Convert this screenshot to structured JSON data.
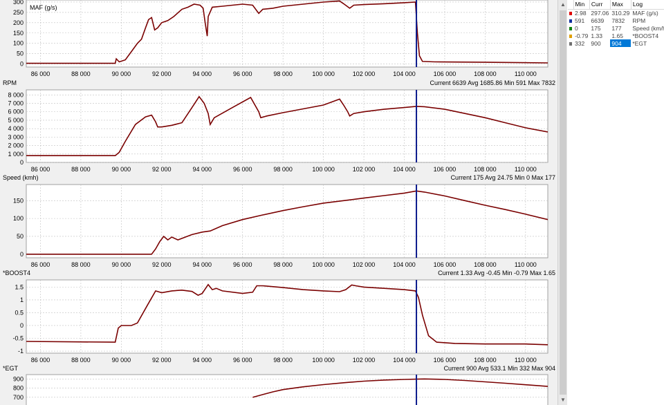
{
  "legend": {
    "headers": [
      "Min",
      "Curr",
      "Max",
      "Log"
    ],
    "rows": [
      {
        "color": "#e00000",
        "min": "2.98",
        "curr": "297.06",
        "max": "310.29",
        "log": "MAF (g/s)"
      },
      {
        "color": "#1030a0",
        "min": "591",
        "curr": "6639",
        "max": "7832",
        "log": "RPM"
      },
      {
        "color": "#108010",
        "min": "0",
        "curr": "175",
        "max": "177",
        "log": "Speed (km/h)"
      },
      {
        "color": "#e0a000",
        "min": "-0.79",
        "curr": "1.33",
        "max": "1.65",
        "log": "*BOOST4"
      },
      {
        "color": "#707070",
        "min": "332",
        "curr": "900",
        "max": "904",
        "log": "*EGT"
      }
    ]
  },
  "colors": {
    "trace": "#7a0000",
    "cursor": "#0b1a8c",
    "grid": "#c0c0c0"
  },
  "cursor_x": 104600,
  "chart_data": [
    {
      "type": "line",
      "name": "MAF (g/s)",
      "header": "",
      "stats": "",
      "ylim": [
        -15,
        310
      ],
      "yticks": [
        0,
        50,
        100,
        150,
        200,
        250,
        300
      ],
      "ytick_labels": [
        "0",
        "50",
        "100",
        "150",
        "200",
        "250",
        "300"
      ],
      "xlim": [
        85300,
        111100
      ],
      "xticks": [
        86000,
        88000,
        90000,
        92000,
        94000,
        96000,
        98000,
        100000,
        102000,
        104000,
        106000,
        108000,
        110000
      ],
      "xtick_labels": [
        "86 000",
        "88 000",
        "90 000",
        "92 000",
        "94 000",
        "96 000",
        "98 000",
        "100 000",
        "102 000",
        "104 000",
        "106 000",
        "108 000",
        "110 000"
      ],
      "x": [
        85300,
        89700,
        89750,
        89900,
        90200,
        90500,
        90800,
        91000,
        91200,
        91350,
        91500,
        91650,
        91800,
        92000,
        92300,
        92600,
        93000,
        93300,
        93600,
        93900,
        94050,
        94150,
        94250,
        94300,
        94500,
        95000,
        95500,
        96000,
        96500,
        96800,
        97000,
        97500,
        98000,
        99000,
        100000,
        100800,
        101000,
        101300,
        101500,
        102000,
        103000,
        104000,
        104550,
        104650,
        104750,
        104900,
        105500,
        108000,
        111100
      ],
      "values": [
        3,
        3,
        25,
        10,
        20,
        60,
        100,
        120,
        175,
        215,
        225,
        165,
        175,
        200,
        210,
        230,
        265,
        275,
        290,
        285,
        270,
        200,
        135,
        230,
        275,
        280,
        285,
        290,
        285,
        245,
        265,
        270,
        280,
        290,
        300,
        305,
        292,
        270,
        285,
        288,
        292,
        297,
        300,
        150,
        40,
        12,
        10,
        8,
        5
      ]
    },
    {
      "type": "line",
      "name": "RPM",
      "header": "RPM",
      "stats": "Current 6639 Avg 1685.86 Min 591 Max 7832",
      "ylim": [
        0,
        8600
      ],
      "yticks": [
        0,
        1000,
        2000,
        3000,
        4000,
        5000,
        6000,
        7000,
        8000
      ],
      "ytick_labels": [
        "0",
        "1 000",
        "2 000",
        "3 000",
        "4 000",
        "5 000",
        "6 000",
        "7 000",
        "8 000"
      ],
      "xlim": [
        85300,
        111100
      ],
      "xticks": [
        86000,
        88000,
        90000,
        92000,
        94000,
        96000,
        98000,
        100000,
        102000,
        104000,
        106000,
        108000,
        110000
      ],
      "xtick_labels": [
        "86 000",
        "88 000",
        "90 000",
        "92 000",
        "94 000",
        "96 000",
        "98 000",
        "100 000",
        "102 000",
        "104 000",
        "106 000",
        "108 000",
        "110 000"
      ],
      "x": [
        85300,
        89700,
        89900,
        90200,
        90700,
        91200,
        91500,
        91700,
        91800,
        92000,
        92500,
        93000,
        93500,
        93850,
        94100,
        94300,
        94400,
        94600,
        95500,
        96400,
        96800,
        96900,
        97200,
        98000,
        100000,
        100800,
        101000,
        101200,
        101300,
        101500,
        102000,
        103000,
        104000,
        104600,
        105000,
        106000,
        107000,
        108000,
        109000,
        110000,
        111100
      ],
      "values": [
        800,
        800,
        1200,
        2500,
        4500,
        5400,
        5600,
        4800,
        4200,
        4200,
        4400,
        4700,
        6500,
        7800,
        7000,
        5800,
        4500,
        5300,
        6500,
        7700,
        6000,
        5300,
        5500,
        5900,
        6800,
        7500,
        6800,
        6000,
        5500,
        5800,
        6000,
        6300,
        6500,
        6639,
        6600,
        6300,
        5800,
        5300,
        4700,
        4100,
        3600
      ]
    },
    {
      "type": "line",
      "name": "Speed (km/h)",
      "header": "Speed (kmh)",
      "stats": "Current 175 Avg 24.75 Min 0 Max 177",
      "ylim": [
        -10,
        195
      ],
      "yticks": [
        0,
        50,
        100,
        150
      ],
      "ytick_labels": [
        "0",
        "50",
        "100",
        "150"
      ],
      "xlim": [
        85300,
        111100
      ],
      "xticks": [
        86000,
        88000,
        90000,
        92000,
        94000,
        96000,
        98000,
        100000,
        102000,
        104000,
        106000,
        108000,
        110000
      ],
      "xtick_labels": [
        "86 000",
        "88 000",
        "90 000",
        "92 000",
        "94 000",
        "96 000",
        "98 000",
        "100 000",
        "102 000",
        "104 000",
        "106 000",
        "108 000",
        "110 000"
      ],
      "x": [
        85300,
        91500,
        91700,
        91900,
        92100,
        92300,
        92500,
        92800,
        93500,
        94000,
        94400,
        95000,
        96000,
        97000,
        98000,
        99000,
        100000,
        101000,
        102000,
        103000,
        104000,
        104600,
        105000,
        106000,
        107000,
        108000,
        109000,
        110000,
        111100
      ],
      "values": [
        0,
        0,
        15,
        35,
        50,
        40,
        48,
        40,
        55,
        62,
        65,
        80,
        97,
        110,
        122,
        133,
        143,
        150,
        157,
        164,
        171,
        177,
        174,
        163,
        150,
        137,
        125,
        112,
        97
      ]
    },
    {
      "type": "line",
      "name": "*BOOST4",
      "header": "*BOOST4",
      "stats": "Current 1.33 Avg -0.45 Min -0.79 Max 1.65",
      "ylim": [
        -1.08,
        1.78
      ],
      "yticks": [
        -1,
        -0.5,
        0,
        0.5,
        1,
        1.5
      ],
      "ytick_labels": [
        "-1",
        "-0.5",
        "0",
        "0.5",
        "1",
        "1.5"
      ],
      "xlim": [
        85300,
        111100
      ],
      "xticks": [
        86000,
        88000,
        90000,
        92000,
        94000,
        96000,
        98000,
        100000,
        102000,
        104000,
        106000,
        108000,
        110000
      ],
      "xtick_labels": [
        "86 000",
        "88 000",
        "90 000",
        "92 000",
        "94 000",
        "96 000",
        "98 000",
        "100 000",
        "102 000",
        "104 000",
        "106 000",
        "108 000",
        "110 000"
      ],
      "x": [
        85300,
        89700,
        89850,
        90000,
        90500,
        90800,
        91300,
        91700,
        92000,
        92500,
        93000,
        93500,
        93800,
        94000,
        94300,
        94500,
        94700,
        95000,
        96000,
        96500,
        96700,
        97000,
        98000,
        99000,
        100000,
        100800,
        101100,
        101400,
        101600,
        102000,
        103000,
        104000,
        104550,
        104700,
        104900,
        105200,
        105600,
        106500,
        108000,
        110000,
        111100
      ],
      "values": [
        -0.62,
        -0.65,
        -0.1,
        0.0,
        0.0,
        0.1,
        0.8,
        1.35,
        1.28,
        1.35,
        1.38,
        1.33,
        1.18,
        1.25,
        1.6,
        1.4,
        1.45,
        1.35,
        1.25,
        1.3,
        1.55,
        1.55,
        1.48,
        1.4,
        1.35,
        1.32,
        1.4,
        1.58,
        1.55,
        1.5,
        1.45,
        1.4,
        1.35,
        1.1,
        0.4,
        -0.4,
        -0.65,
        -0.7,
        -0.72,
        -0.72,
        -0.75
      ]
    },
    {
      "type": "line",
      "name": "*EGT",
      "header": "*EGT",
      "stats": "Current 900 Avg 533.1 Min 332 Max 904",
      "ylim": [
        600,
        950
      ],
      "yticks": [
        700,
        800,
        900
      ],
      "ytick_labels": [
        "700",
        "800",
        "900"
      ],
      "xlim": [
        85300,
        111100
      ],
      "x": [
        96500,
        97000,
        97500,
        98000,
        99000,
        100000,
        101000,
        102000,
        103000,
        104000,
        104600,
        105000,
        106000,
        107000,
        108000,
        109000,
        110000,
        111100
      ],
      "values": [
        700,
        730,
        760,
        785,
        815,
        840,
        860,
        878,
        890,
        897,
        900,
        902,
        897,
        885,
        870,
        855,
        838,
        820
      ]
    }
  ]
}
